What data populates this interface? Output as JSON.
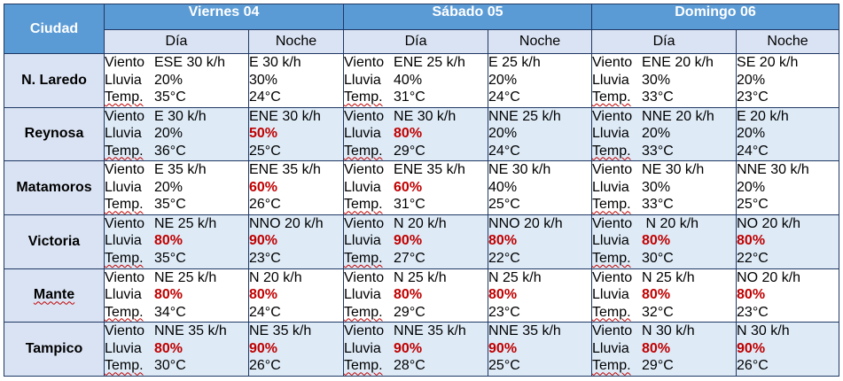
{
  "header": {
    "city": "Ciudad",
    "days": [
      "Viernes 04",
      "Sábado 05",
      "Domingo 06"
    ],
    "day_label": "Día",
    "night_label": "Noche"
  },
  "labels": {
    "wind": "Viento",
    "rain": "Lluvia",
    "temp": "Temp."
  },
  "colors": {
    "header_bg": "#5b9bd5",
    "subheader_bg": "#dae3f3",
    "row_alt_bg": "#deebf7",
    "highlight": "#c00000",
    "border": "#1f3864"
  },
  "rows": [
    {
      "city": "N. Laredo",
      "city_underlined": false,
      "cells": [
        {
          "wind": "ESE 30 k/h",
          "rain": "20%",
          "temp": "35°C"
        },
        {
          "wind": "E 30 k/h",
          "rain": "30%",
          "temp": "24°C"
        },
        {
          "wind": "ENE 25 k/h",
          "rain": "40%",
          "temp": "31°C"
        },
        {
          "wind": "E 25 k/h",
          "rain": "20%",
          "temp": "24°C"
        },
        {
          "wind": "ENE 20 k/h",
          "rain": "30%",
          "temp": "33°C"
        },
        {
          "wind": "SE 20 k/h",
          "rain": "20%",
          "temp": "23°C"
        }
      ]
    },
    {
      "city": "Reynosa",
      "city_underlined": false,
      "cells": [
        {
          "wind": "E 30 k/h",
          "rain": "20%",
          "temp": "36°C"
        },
        {
          "wind": "ENE 30 k/h",
          "rain": "50%",
          "temp": "25°C",
          "rain_hot": true
        },
        {
          "wind": "NE 30 k/h",
          "rain": "80%",
          "temp": "29°C",
          "rain_hot": true
        },
        {
          "wind": "NNE 25 k/h",
          "rain": "20%",
          "temp": "24°C"
        },
        {
          "wind": "NNE 20 k/h",
          "rain": "20%",
          "temp": "33°C"
        },
        {
          "wind": "E 20 k/h",
          "rain": "20%",
          "temp": "24°C"
        }
      ]
    },
    {
      "city": "Matamoros",
      "city_underlined": false,
      "cells": [
        {
          "wind": "E 35 k/h",
          "rain": "20%",
          "temp": "35°C"
        },
        {
          "wind": "ENE 35 k/h",
          "rain": "60%",
          "temp": "26°C",
          "rain_hot": true
        },
        {
          "wind": "ENE 35 k/h",
          "rain": "60%",
          "temp": "31°C",
          "rain_hot": true
        },
        {
          "wind": "NE 30 k/h",
          "rain": "40%",
          "temp": "25°C"
        },
        {
          "wind": "NE 30 k/h",
          "rain": "30%",
          "temp": "33°C"
        },
        {
          "wind": "NNE 30 k/h",
          "rain": "20%",
          "temp": "25°C"
        }
      ]
    },
    {
      "city": "Victoria",
      "city_underlined": false,
      "cells": [
        {
          "wind": "NE 25 k/h",
          "rain": "80%",
          "temp": "35°C",
          "rain_hot": true
        },
        {
          "wind": "NNO 20 k/h",
          "rain": "90%",
          "temp": "23°C",
          "rain_hot": true
        },
        {
          "wind": "N 20 k/h",
          "rain": "90%",
          "temp": "27°C",
          "rain_hot": true
        },
        {
          "wind": "NNO 20 k/h",
          "rain": "80%",
          "temp": "22°C",
          "rain_hot": true
        },
        {
          "wind": " N 20 k/h",
          "rain": "80%",
          "temp": "30°C",
          "rain_hot": true
        },
        {
          "wind": "NO 20 k/h",
          "rain": "80%",
          "temp": "22°C",
          "rain_hot": true
        }
      ]
    },
    {
      "city": "Mante",
      "city_underlined": true,
      "cells": [
        {
          "wind": "NE 25 k/h",
          "rain": "80%",
          "temp": "34°C",
          "rain_hot": true
        },
        {
          "wind": "N 20 k/h",
          "rain": "80%",
          "temp": "24°C",
          "rain_hot": true
        },
        {
          "wind": "N 25 k/h",
          "rain": "80%",
          "temp": "29°C",
          "rain_hot": true
        },
        {
          "wind": "N 25 k/h",
          "rain": "80%",
          "temp": "23°C",
          "rain_hot": true
        },
        {
          "wind": "N 25 k/h",
          "rain": "80%",
          "temp": "32°C",
          "rain_hot": true
        },
        {
          "wind": "NO 20 k/h",
          "rain": "80%",
          "temp": "23°C",
          "rain_hot": true
        }
      ]
    },
    {
      "city": "Tampico",
      "city_underlined": false,
      "cells": [
        {
          "wind": "NNE 35 k/h",
          "rain": "80%",
          "temp": "30°C",
          "rain_hot": true
        },
        {
          "wind": "NE 35 k/h",
          "rain": "90%",
          "temp": "26°C",
          "rain_hot": true
        },
        {
          "wind": "NNE 35 k/h",
          "rain": "90%",
          "temp": "28°C",
          "rain_hot": true
        },
        {
          "wind": "NNE 35 k/h",
          "rain": "90%",
          "temp": "25°C",
          "rain_hot": true
        },
        {
          "wind": "N 30 k/h",
          "rain": "80%",
          "temp": "29°C",
          "rain_hot": true
        },
        {
          "wind": "N 30 k/h",
          "rain": "90%",
          "temp": "26°C",
          "rain_hot": true
        }
      ]
    }
  ]
}
